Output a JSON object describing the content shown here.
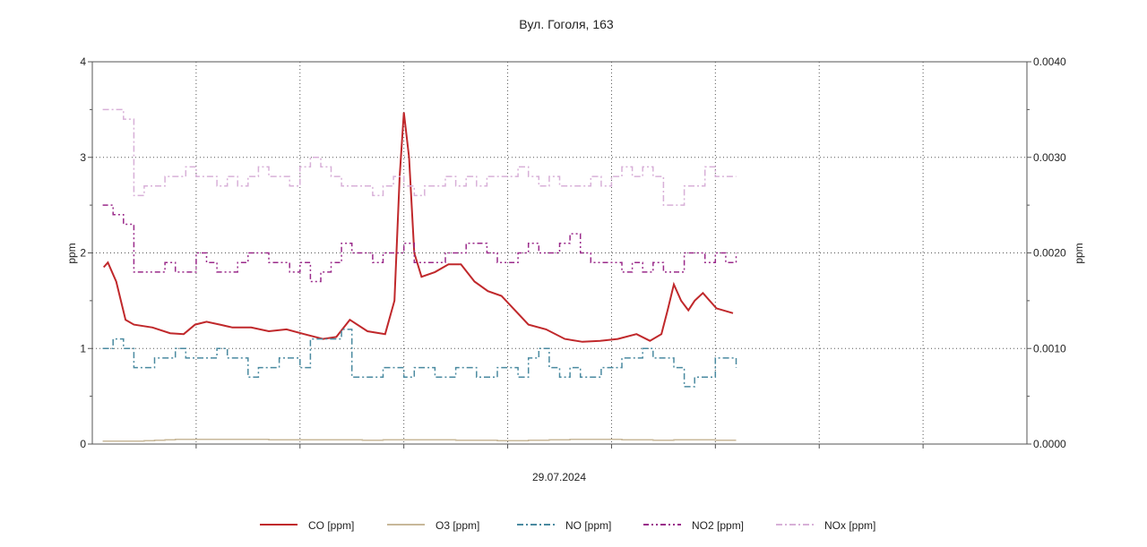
{
  "chart_data": {
    "type": "line",
    "title": "Вул. Гоголя, 163",
    "xlabel": "29.07.2024",
    "ylabel": "ppm",
    "ylabel_right": "ppm",
    "xlim": [
      0,
      90
    ],
    "ylim": [
      0,
      4
    ],
    "ylim_right": [
      0,
      0.004
    ],
    "yticks": [
      "0",
      "1",
      "2",
      "3",
      "4"
    ],
    "yticks_right": [
      "0.0000",
      "0.0010",
      "0.0020",
      "0.0030",
      "0.0040"
    ],
    "grid": true,
    "legend_position": "bottom",
    "x_start": 1,
    "x_step": 1,
    "series": [
      {
        "name": "CO [ppm]",
        "color": "#c0282b",
        "style": "solid",
        "points": [
          [
            1.1,
            1.85
          ],
          [
            1.5,
            1.9
          ],
          [
            2.3,
            1.7
          ],
          [
            3.2,
            1.3
          ],
          [
            4.0,
            1.25
          ],
          [
            5.8,
            1.22
          ],
          [
            7.5,
            1.16
          ],
          [
            8.8,
            1.15
          ],
          [
            9.9,
            1.25
          ],
          [
            11.0,
            1.28
          ],
          [
            12.3,
            1.25
          ],
          [
            13.5,
            1.22
          ],
          [
            15.3,
            1.22
          ],
          [
            17.0,
            1.18
          ],
          [
            18.7,
            1.2
          ],
          [
            20.4,
            1.15
          ],
          [
            22.2,
            1.1
          ],
          [
            23.5,
            1.12
          ],
          [
            24.8,
            1.3
          ],
          [
            26.5,
            1.18
          ],
          [
            28.2,
            1.15
          ],
          [
            29.1,
            1.5
          ],
          [
            29.6,
            2.8
          ],
          [
            30.0,
            3.47
          ],
          [
            30.5,
            3.0
          ],
          [
            31.0,
            2.0
          ],
          [
            31.7,
            1.75
          ],
          [
            33.0,
            1.8
          ],
          [
            34.3,
            1.88
          ],
          [
            35.5,
            1.88
          ],
          [
            36.8,
            1.7
          ],
          [
            38.1,
            1.6
          ],
          [
            39.4,
            1.55
          ],
          [
            40.7,
            1.4
          ],
          [
            42.0,
            1.25
          ],
          [
            43.7,
            1.2
          ],
          [
            45.5,
            1.1
          ],
          [
            47.2,
            1.07
          ],
          [
            48.9,
            1.08
          ],
          [
            50.6,
            1.1
          ],
          [
            52.4,
            1.15
          ],
          [
            53.7,
            1.08
          ],
          [
            54.8,
            1.15
          ],
          [
            55.4,
            1.4
          ],
          [
            56.0,
            1.67
          ],
          [
            56.7,
            1.5
          ],
          [
            57.4,
            1.4
          ],
          [
            58.0,
            1.5
          ],
          [
            58.8,
            1.58
          ],
          [
            60.1,
            1.42
          ],
          [
            61.7,
            1.37
          ]
        ]
      },
      {
        "name": "O3 [ppm]",
        "color": "#c8b89a",
        "style": "solid",
        "values": [
          0.03,
          0.03,
          0.03,
          0.03,
          0.035,
          0.04,
          0.045,
          0.05,
          0.05,
          0.05,
          0.05,
          0.05,
          0.05,
          0.05,
          0.05,
          0.05,
          0.045,
          0.045,
          0.045,
          0.045,
          0.045,
          0.045,
          0.045,
          0.045,
          0.045,
          0.04,
          0.04,
          0.045,
          0.045,
          0.045,
          0.045,
          0.045,
          0.045,
          0.045,
          0.04,
          0.04,
          0.04,
          0.04,
          0.035,
          0.035,
          0.035,
          0.04,
          0.04,
          0.045,
          0.045,
          0.05,
          0.05,
          0.05,
          0.05,
          0.05,
          0.045,
          0.045,
          0.045,
          0.04,
          0.04,
          0.045,
          0.045,
          0.045,
          0.045,
          0.04,
          0.04,
          0.04
        ]
      },
      {
        "name": "NO [ppm]",
        "color": "#4a8aa0",
        "style": "dashdot",
        "values": [
          1.0,
          1.1,
          1.0,
          0.8,
          0.8,
          0.9,
          0.9,
          1.0,
          0.9,
          0.9,
          0.9,
          1.0,
          0.9,
          0.9,
          0.7,
          0.8,
          0.8,
          0.9,
          0.9,
          0.8,
          1.1,
          1.1,
          1.1,
          1.2,
          0.7,
          0.7,
          0.7,
          0.8,
          0.8,
          0.7,
          0.8,
          0.8,
          0.7,
          0.7,
          0.8,
          0.8,
          0.7,
          0.7,
          0.8,
          0.8,
          0.7,
          0.9,
          1.0,
          0.8,
          0.7,
          0.8,
          0.7,
          0.7,
          0.8,
          0.8,
          0.9,
          0.9,
          1.0,
          0.9,
          0.9,
          0.8,
          0.6,
          0.7,
          0.7,
          0.9,
          0.9,
          0.8
        ]
      },
      {
        "name": "NO2 [ppm]",
        "color": "#9a2a8a",
        "style": "dashdotdot",
        "values": [
          2.5,
          2.4,
          2.3,
          1.8,
          1.8,
          1.8,
          1.9,
          1.8,
          1.8,
          2.0,
          1.9,
          1.8,
          1.8,
          1.9,
          2.0,
          2.0,
          1.9,
          1.9,
          1.8,
          1.9,
          1.7,
          1.8,
          1.9,
          2.1,
          2.0,
          2.0,
          1.9,
          2.0,
          2.0,
          2.1,
          1.9,
          1.9,
          1.9,
          2.0,
          2.0,
          2.1,
          2.1,
          2.0,
          1.9,
          1.9,
          2.0,
          2.1,
          2.0,
          2.0,
          2.1,
          2.2,
          2.0,
          1.9,
          1.9,
          1.9,
          1.8,
          1.9,
          1.8,
          1.9,
          1.8,
          1.8,
          2.0,
          2.0,
          1.9,
          2.0,
          1.9,
          2.0
        ]
      },
      {
        "name": "NOx [ppm]",
        "color": "#d8b0d8",
        "style": "dashdot",
        "values": [
          3.5,
          3.5,
          3.4,
          2.6,
          2.7,
          2.7,
          2.8,
          2.8,
          2.9,
          2.8,
          2.8,
          2.7,
          2.8,
          2.7,
          2.8,
          2.9,
          2.8,
          2.8,
          2.7,
          2.9,
          3.0,
          2.9,
          2.8,
          2.7,
          2.7,
          2.7,
          2.6,
          2.7,
          2.8,
          2.7,
          2.6,
          2.7,
          2.7,
          2.8,
          2.7,
          2.8,
          2.7,
          2.8,
          2.8,
          2.8,
          2.9,
          2.8,
          2.7,
          2.8,
          2.7,
          2.7,
          2.7,
          2.8,
          2.7,
          2.8,
          2.9,
          2.8,
          2.9,
          2.8,
          2.5,
          2.5,
          2.7,
          2.7,
          2.9,
          2.8,
          2.8,
          2.8
        ]
      }
    ]
  }
}
